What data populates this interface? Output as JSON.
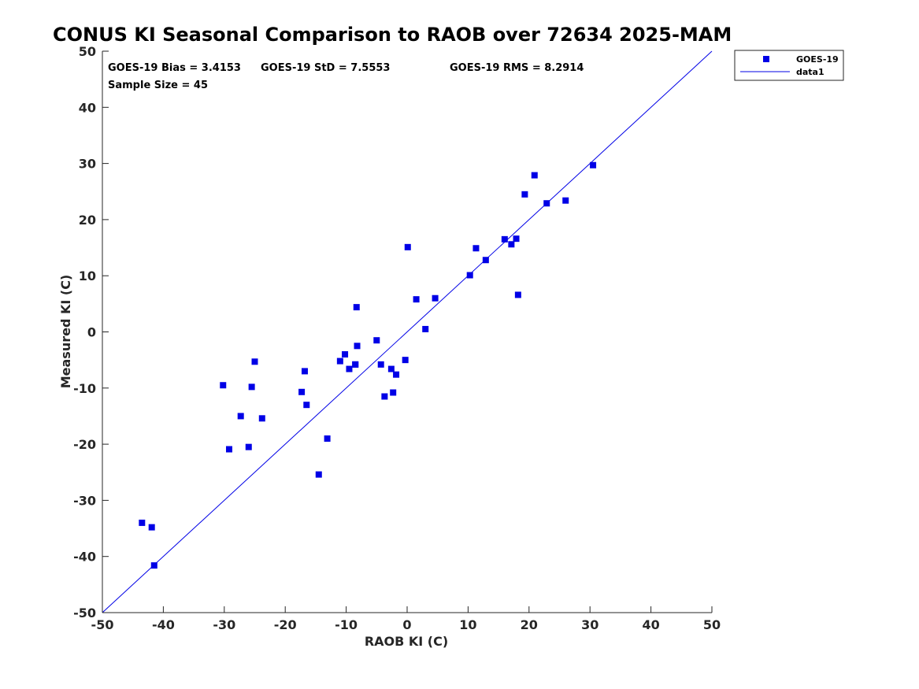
{
  "chart_data": {
    "type": "scatter",
    "title": "CONUS KI Seasonal Comparison to RAOB over 72634 2025-MAM",
    "xlabel": "RAOB KI (C)",
    "ylabel": "Measured KI (C)",
    "xlim": [
      -50,
      50
    ],
    "ylim": [
      -50,
      50
    ],
    "xticks": [
      "-50",
      "-40",
      "-30",
      "-20",
      "-10",
      "0",
      "10",
      "20",
      "30",
      "40",
      "50"
    ],
    "yticks": [
      "50",
      "40",
      "30",
      "20",
      "10",
      "0",
      "-10",
      "-20",
      "-30",
      "-40",
      "-50"
    ],
    "grid": false,
    "stats": {
      "bias": "GOES-19 Bias = 3.4153",
      "std": "GOES-19 StD = 7.5553",
      "rms": "GOES-19 RMS = 8.2914",
      "sample": "Sample Size = 45"
    },
    "legend": {
      "position": "outside-top-right",
      "entries": [
        "GOES-19",
        "data1"
      ]
    },
    "series": [
      {
        "name": "GOES-19",
        "marker": "square",
        "color": "#0000e6",
        "x": [
          -43.5,
          -41.9,
          -41.5,
          -30.2,
          -29.2,
          -27.3,
          -26.0,
          -25.5,
          -25.0,
          -23.8,
          -17.3,
          -16.8,
          -16.5,
          -13.1,
          -14.5,
          -11.0,
          -10.2,
          -9.5,
          -8.5,
          -8.3,
          -8.2,
          -5.0,
          -4.3,
          -3.7,
          -2.6,
          -2.3,
          -1.8,
          -0.3,
          0.1,
          1.5,
          3.0,
          4.6,
          10.3,
          11.3,
          12.9,
          16.0,
          17.1,
          17.9,
          18.2,
          19.3,
          20.9,
          22.9,
          26.0,
          30.5,
          -8.5
        ],
        "y": [
          -34.0,
          -34.8,
          -41.6,
          -9.5,
          -20.9,
          -15.0,
          -20.5,
          -9.8,
          -5.3,
          -15.4,
          -10.7,
          -7.0,
          -13.0,
          -19.0,
          -25.4,
          -5.2,
          -4.0,
          -6.6,
          -5.8,
          4.4,
          -2.5,
          -1.5,
          -5.8,
          -11.5,
          -6.6,
          -10.8,
          -7.6,
          -5.0,
          15.1,
          5.8,
          0.5,
          6.0,
          10.1,
          14.9,
          12.8,
          16.5,
          15.6,
          16.6,
          6.6,
          24.5,
          27.9,
          22.9,
          23.4,
          29.7,
          -5.8
        ]
      },
      {
        "name": "data1",
        "type": "line",
        "color": "#0000e6",
        "x": [
          -50,
          50
        ],
        "y": [
          -50,
          50
        ]
      }
    ]
  }
}
